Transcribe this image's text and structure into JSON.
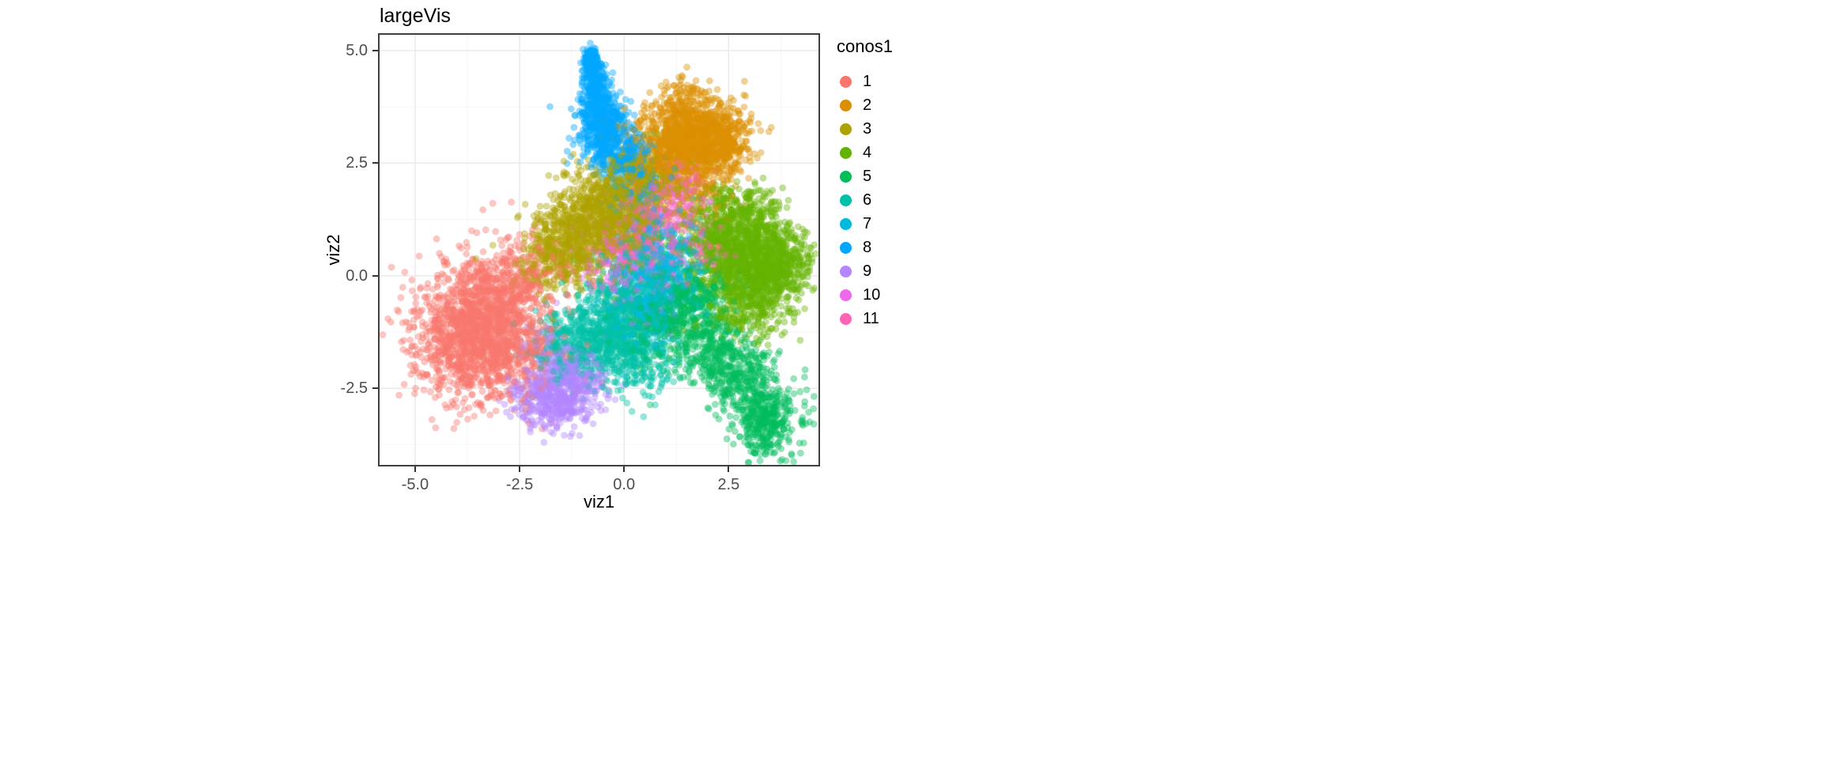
{
  "figure": {
    "background": "#ffffff",
    "panel_border": "#3f3f3f",
    "tick_color": "#333333",
    "tick_label_color": "#4d4d4d"
  },
  "chart_data": {
    "type": "scatter",
    "title": "largeVis",
    "xlabel": "viz1",
    "ylabel": "viz2",
    "legend_title": "conos1",
    "legend_position": "right",
    "grid": {
      "major": "#ebebeb",
      "minor": "#f6f6f6",
      "on": true
    },
    "xlim": [
      -5.85,
      4.65
    ],
    "ylim": [
      -4.2,
      5.35
    ],
    "x_ticks": [
      {
        "value": -5.0,
        "label": "-5.0"
      },
      {
        "value": -2.5,
        "label": "-2.5"
      },
      {
        "value": 0.0,
        "label": "0.0"
      },
      {
        "value": 2.5,
        "label": "2.5"
      }
    ],
    "y_ticks": [
      {
        "value": 5.0,
        "label": "5.0"
      },
      {
        "value": 2.5,
        "label": "2.5"
      },
      {
        "value": 0.0,
        "label": "0.0"
      },
      {
        "value": -2.5,
        "label": "-2.5"
      }
    ],
    "point_alpha": 0.42,
    "point_radius": 4.4,
    "seed": 42,
    "series": [
      {
        "name": "1",
        "color": "#F8766D",
        "clusters": [
          {
            "cx": -3.45,
            "cy": -1.35,
            "sx": 0.75,
            "sy": 0.68,
            "rot": -15,
            "n": 1500
          },
          {
            "cx": -2.9,
            "cy": -0.25,
            "sx": 0.55,
            "sy": 0.42,
            "rot": 0,
            "n": 320
          },
          {
            "cx": -3.5,
            "cy": -1.1,
            "sx": 1.05,
            "sy": 0.95,
            "rot": 0,
            "n": 180
          },
          {
            "cx": -2.2,
            "cy": 0.2,
            "sx": 0.35,
            "sy": 0.35,
            "rot": 0,
            "n": 60
          },
          {
            "cx": -1.5,
            "cy": 0.3,
            "sx": 0.8,
            "sy": 0.6,
            "rot": 0,
            "n": 40
          }
        ]
      },
      {
        "name": "2",
        "color": "#DB8E00",
        "clusters": [
          {
            "cx": 1.75,
            "cy": 3.05,
            "sx": 0.52,
            "sy": 0.42,
            "rot": 0,
            "n": 850
          },
          {
            "cx": 0.95,
            "cy": 2.95,
            "sx": 0.5,
            "sy": 0.45,
            "rot": 0,
            "n": 280
          },
          {
            "cx": 1.4,
            "cy": 2.35,
            "sx": 0.65,
            "sy": 0.3,
            "rot": 0,
            "n": 200
          },
          {
            "cx": 2.45,
            "cy": 3.15,
            "sx": 0.3,
            "sy": 0.35,
            "rot": 0,
            "n": 150
          },
          {
            "cx": 1.35,
            "cy": 3.9,
            "sx": 0.35,
            "sy": 0.25,
            "rot": 0,
            "n": 90
          },
          {
            "cx": 1.8,
            "cy": 1.7,
            "sx": 0.45,
            "sy": 0.45,
            "rot": 0,
            "n": 90
          }
        ]
      },
      {
        "name": "3",
        "color": "#AEA200",
        "clusters": [
          {
            "cx": -0.7,
            "cy": 1.3,
            "sx": 0.95,
            "sy": 0.5,
            "rot": 42,
            "n": 1100
          },
          {
            "cx": 0.1,
            "cy": 1.0,
            "sx": 0.5,
            "sy": 0.5,
            "rot": 0,
            "n": 280
          },
          {
            "cx": -1.5,
            "cy": 0.4,
            "sx": 0.4,
            "sy": 0.4,
            "rot": 0,
            "n": 160
          },
          {
            "cx": 0.3,
            "cy": 2.2,
            "sx": 0.35,
            "sy": 0.3,
            "rot": 0,
            "n": 100
          },
          {
            "cx": 0.9,
            "cy": 1.9,
            "sx": 0.4,
            "sy": 0.35,
            "rot": 0,
            "n": 120
          }
        ]
      },
      {
        "name": "4",
        "color": "#64B200",
        "clusters": [
          {
            "cx": 3.05,
            "cy": 0.3,
            "sx": 0.6,
            "sy": 0.58,
            "rot": 0,
            "n": 1300
          },
          {
            "cx": 2.3,
            "cy": 0.9,
            "sx": 0.5,
            "sy": 0.45,
            "rot": 0,
            "n": 260
          },
          {
            "cx": 2.7,
            "cy": 1.6,
            "sx": 0.45,
            "sy": 0.3,
            "rot": 0,
            "n": 130
          },
          {
            "cx": 3.0,
            "cy": -0.85,
            "sx": 0.5,
            "sy": 0.3,
            "rot": 0,
            "n": 140
          },
          {
            "cx": 3.9,
            "cy": 0.2,
            "sx": 0.3,
            "sy": 0.4,
            "rot": 0,
            "n": 120
          }
        ]
      },
      {
        "name": "5",
        "color": "#00BD5C",
        "clusters": [
          {
            "cx": 2.35,
            "cy": -1.9,
            "sx": 1.05,
            "sy": 0.42,
            "rot": -42,
            "n": 800
          },
          {
            "cx": 3.35,
            "cy": -3.25,
            "sx": 0.3,
            "sy": 0.42,
            "rot": 0,
            "n": 280
          },
          {
            "cx": 1.3,
            "cy": -0.55,
            "sx": 0.45,
            "sy": 0.4,
            "rot": 0,
            "n": 220
          },
          {
            "cx": 0.6,
            "cy": -1.2,
            "sx": 0.5,
            "sy": 0.45,
            "rot": 0,
            "n": 130
          },
          {
            "cx": 1.9,
            "cy": -0.4,
            "sx": 0.4,
            "sy": 0.35,
            "rot": 0,
            "n": 120
          }
        ]
      },
      {
        "name": "6",
        "color": "#00C1A7",
        "clusters": [
          {
            "cx": -0.35,
            "cy": -1.3,
            "sx": 0.6,
            "sy": 0.5,
            "rot": -10,
            "n": 650
          },
          {
            "cx": -1.25,
            "cy": -1.55,
            "sx": 0.45,
            "sy": 0.4,
            "rot": 0,
            "n": 220
          },
          {
            "cx": 0.1,
            "cy": -0.4,
            "sx": 0.5,
            "sy": 0.45,
            "rot": 0,
            "n": 220
          },
          {
            "cx": 0.5,
            "cy": -2.0,
            "sx": 0.4,
            "sy": 0.35,
            "rot": 0,
            "n": 110
          }
        ]
      },
      {
        "name": "7",
        "color": "#00BADE",
        "clusters": [
          {
            "cx": 0.85,
            "cy": -0.2,
            "sx": 0.5,
            "sy": 0.55,
            "rot": 0,
            "n": 420
          },
          {
            "cx": 0.9,
            "cy": 0.7,
            "sx": 0.5,
            "sy": 0.4,
            "rot": 0,
            "n": 130
          },
          {
            "cx": 0.3,
            "cy": -0.9,
            "sx": 0.4,
            "sy": 0.35,
            "rot": 0,
            "n": 90
          }
        ]
      },
      {
        "name": "8",
        "color": "#00A6FF",
        "clusters": [
          {
            "cx": -0.78,
            "cy": 4.72,
            "sx": 0.1,
            "sy": 0.16,
            "rot": 0,
            "n": 230
          },
          {
            "cx": -0.72,
            "cy": 4.1,
            "sx": 0.15,
            "sy": 0.32,
            "rot": 0,
            "n": 230
          },
          {
            "cx": -0.5,
            "cy": 3.3,
            "sx": 0.3,
            "sy": 0.38,
            "rot": 0,
            "n": 420
          },
          {
            "cx": -0.1,
            "cy": 2.7,
            "sx": 0.42,
            "sy": 0.32,
            "rot": 0,
            "n": 240
          },
          {
            "cx": 0.3,
            "cy": 2.0,
            "sx": 0.4,
            "sy": 0.35,
            "rot": 0,
            "n": 110
          },
          {
            "cx": 0.6,
            "cy": 0.8,
            "sx": 0.5,
            "sy": 0.6,
            "rot": 0,
            "n": 60
          }
        ]
      },
      {
        "name": "9",
        "color": "#B385FF",
        "clusters": [
          {
            "cx": -1.75,
            "cy": -2.7,
            "sx": 0.48,
            "sy": 0.33,
            "rot": -8,
            "n": 420
          },
          {
            "cx": -1.3,
            "cy": -2.15,
            "sx": 0.35,
            "sy": 0.3,
            "rot": 0,
            "n": 150
          },
          {
            "cx": -0.8,
            "cy": -2.5,
            "sx": 0.3,
            "sy": 0.25,
            "rot": 0,
            "n": 70
          },
          {
            "cx": -1.9,
            "cy": -1.6,
            "sx": 0.3,
            "sy": 0.3,
            "rot": 0,
            "n": 60
          }
        ]
      },
      {
        "name": "10",
        "color": "#EF67EB",
        "clusters": [
          {
            "cx": 0.4,
            "cy": 0.45,
            "sx": 0.65,
            "sy": 0.6,
            "rot": 0,
            "n": 190
          },
          {
            "cx": 1.2,
            "cy": 1.6,
            "sx": 0.45,
            "sy": 0.4,
            "rot": 0,
            "n": 80
          },
          {
            "cx": -0.3,
            "cy": 0.2,
            "sx": 0.4,
            "sy": 0.4,
            "rot": 0,
            "n": 60
          }
        ]
      },
      {
        "name": "11",
        "color": "#FF63B6",
        "clusters": [
          {
            "cx": 0.8,
            "cy": 1.25,
            "sx": 0.55,
            "sy": 0.5,
            "rot": 0,
            "n": 150
          },
          {
            "cx": 1.7,
            "cy": 0.7,
            "sx": 0.4,
            "sy": 0.35,
            "rot": 0,
            "n": 70
          },
          {
            "cx": 0.2,
            "cy": 0.6,
            "sx": 0.35,
            "sy": 0.35,
            "rot": 0,
            "n": 50
          },
          {
            "cx": 1.5,
            "cy": 1.9,
            "sx": 0.35,
            "sy": 0.3,
            "rot": 0,
            "n": 40
          }
        ]
      }
    ]
  }
}
